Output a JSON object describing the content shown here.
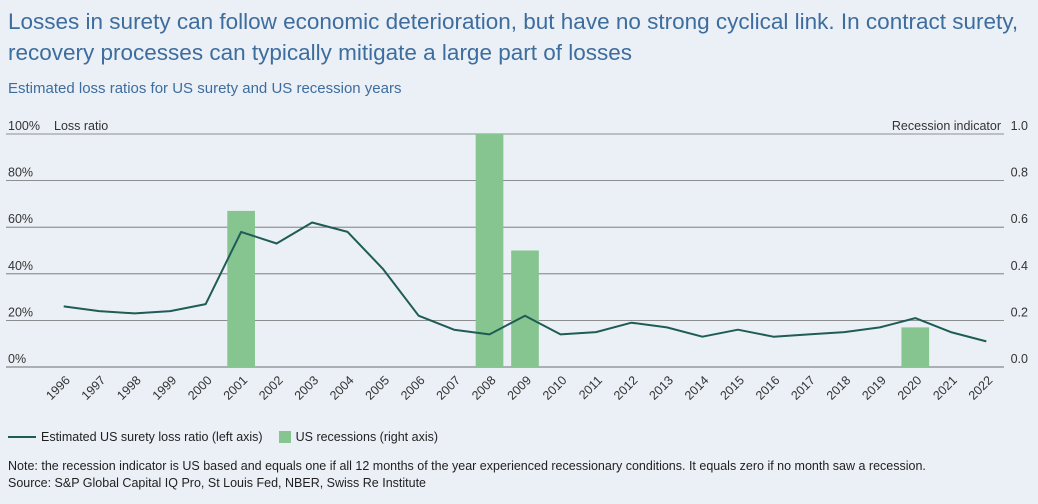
{
  "title": "Losses in surety can follow economic deterioration, but have no strong cyclical link. In contract surety, recovery processes can typically mitigate a large part of losses",
  "subtitle": "Estimated loss ratios for US surety and US recession years",
  "note": "Note: the recession indicator is US based and equals one if all 12 months of the year experienced recessionary conditions. It equals zero if no month saw a recession.",
  "source": "Source: S&P Global Capital IQ Pro, St Louis Fed, NBER, Swiss Re Institute",
  "legend": {
    "line_label": "Estimated US surety loss ratio (left axis)",
    "bar_label": "US recessions (right axis)"
  },
  "colors": {
    "line": "#1f5c56",
    "bar": "#86c590",
    "title": "#3d6d9e",
    "background": "#ebf0f6",
    "grid": "#6e6e6e"
  },
  "chart_data": {
    "type": "bar+line",
    "categories": [
      "1996",
      "1997",
      "1998",
      "1999",
      "2000",
      "2001",
      "2002",
      "2003",
      "2004",
      "2005",
      "2006",
      "2007",
      "2008",
      "2009",
      "2010",
      "2011",
      "2012",
      "2013",
      "2014",
      "2015",
      "2016",
      "2017",
      "2018",
      "2019",
      "2020",
      "2021",
      "2022"
    ],
    "series": [
      {
        "name": "Estimated US surety loss ratio (left axis)",
        "type": "line",
        "axis": "left",
        "values": [
          26,
          24,
          23,
          24,
          27,
          58,
          53,
          62,
          58,
          42,
          22,
          16,
          14,
          22,
          14,
          15,
          19,
          17,
          13,
          16,
          13,
          14,
          15,
          17,
          21,
          15,
          11
        ]
      },
      {
        "name": "US recessions (right axis)",
        "type": "bar",
        "axis": "right",
        "values": [
          0,
          0,
          0,
          0,
          0,
          0.67,
          0,
          0,
          0,
          0,
          0,
          0,
          1.0,
          0.5,
          0,
          0,
          0,
          0,
          0,
          0,
          0,
          0,
          0,
          0,
          0.17,
          0,
          0
        ]
      }
    ],
    "left_axis": {
      "label": "Loss ratio",
      "ylim": [
        0,
        100
      ],
      "ticks": [
        "0%",
        "20%",
        "40%",
        "60%",
        "80%",
        "100%"
      ]
    },
    "right_axis": {
      "label": "Recession indicator",
      "ylim": [
        0,
        1
      ],
      "ticks": [
        "0.0",
        "0.2",
        "0.4",
        "0.6",
        "0.8",
        "1.0"
      ]
    },
    "grid": true,
    "legend_position": "bottom-left"
  }
}
